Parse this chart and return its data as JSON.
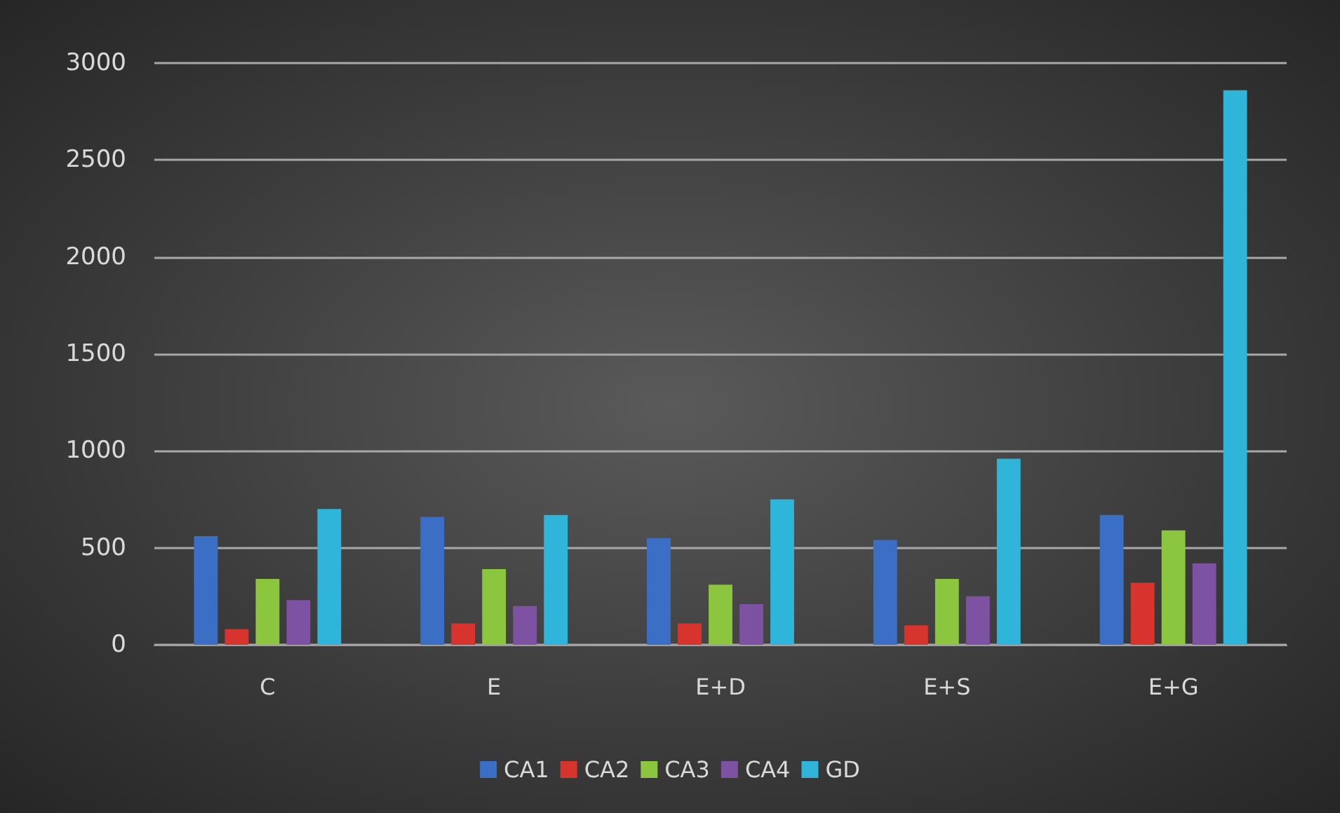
{
  "chart_data": {
    "type": "bar",
    "categories": [
      "C",
      "E",
      "E+D",
      "E+S",
      "E+G"
    ],
    "series": [
      {
        "name": "CA1",
        "color": "#3b6fc6",
        "values": [
          560,
          660,
          550,
          540,
          670
        ]
      },
      {
        "name": "CA2",
        "color": "#d8342e",
        "values": [
          80,
          110,
          110,
          100,
          320
        ]
      },
      {
        "name": "CA3",
        "color": "#8cc63e",
        "values": [
          340,
          390,
          310,
          340,
          590
        ]
      },
      {
        "name": "CA4",
        "color": "#7d52a3",
        "values": [
          230,
          200,
          210,
          250,
          420
        ]
      },
      {
        "name": "GD",
        "color": "#30b5da",
        "values": [
          700,
          670,
          750,
          960,
          2860
        ]
      }
    ],
    "ylim": [
      0,
      3000
    ],
    "yticks": [
      0,
      500,
      1000,
      1500,
      2000,
      2500,
      3000
    ],
    "grid": "y",
    "legend": "bottom"
  }
}
